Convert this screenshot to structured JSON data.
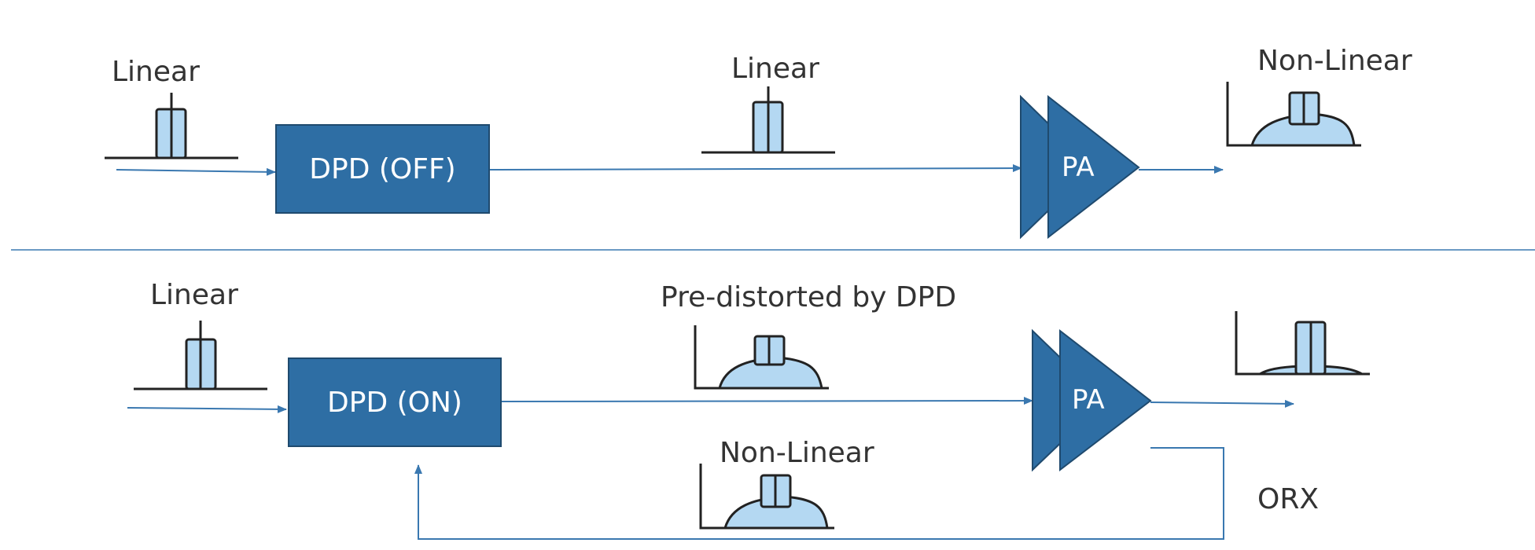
{
  "top": {
    "input_label": "Linear",
    "dpd_label": "DPD (OFF)",
    "mid_label": "Linear",
    "pa_label": "PA",
    "output_label": "Non-Linear"
  },
  "bottom": {
    "input_label": "Linear",
    "dpd_label": "DPD (ON)",
    "mid_label": "Pre-distorted by DPD",
    "pa_label": "PA",
    "feedback_label": "Non-Linear",
    "orx_label": "ORX"
  },
  "colors": {
    "box_fill": "#2e6ea4",
    "arrow": "#3a78b0",
    "spectrum_fill": "#b4d8f2",
    "divider": "#3a78b0"
  }
}
